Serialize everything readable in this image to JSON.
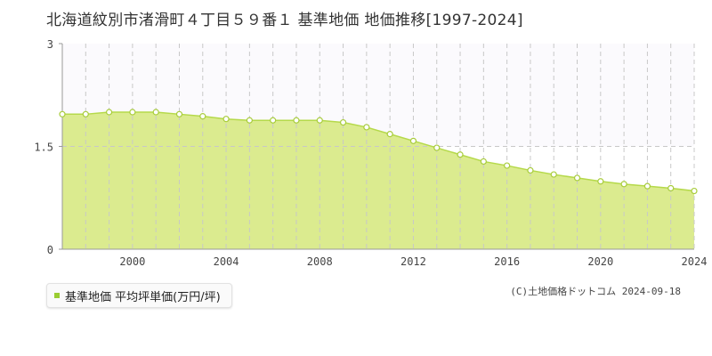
{
  "title": "北海道紋別市渚滑町４丁目５９番１ 基準地価 地価推移[1997-2024]",
  "legend": {
    "label": "基準地価 平均坪単価(万円/坪)"
  },
  "copyright": "(C)土地価格ドットコム 2024-09-18",
  "colors": {
    "fill": "#dbeb8f",
    "line": "#b5d94a",
    "point_stroke": "#a8cc3c",
    "legend_marker": "#9acd32"
  },
  "chart_data": {
    "type": "area",
    "x": [
      1997,
      1998,
      1999,
      2000,
      2001,
      2002,
      2003,
      2004,
      2005,
      2006,
      2007,
      2008,
      2009,
      2010,
      2011,
      2012,
      2013,
      2014,
      2015,
      2016,
      2017,
      2018,
      2019,
      2020,
      2021,
      2022,
      2023,
      2024
    ],
    "series": [
      {
        "name": "基準地価 平均坪単価(万円/坪)",
        "values": [
          1.97,
          1.97,
          2.0,
          2.0,
          2.0,
          1.97,
          1.94,
          1.9,
          1.88,
          1.88,
          1.88,
          1.88,
          1.85,
          1.78,
          1.68,
          1.58,
          1.48,
          1.38,
          1.28,
          1.22,
          1.15,
          1.09,
          1.04,
          0.99,
          0.95,
          0.92,
          0.89,
          0.85
        ]
      }
    ],
    "xticks": [
      2000,
      2004,
      2008,
      2012,
      2016,
      2020,
      2024
    ],
    "yticks": [
      "0",
      "1.5",
      "3"
    ],
    "ylim": [
      0,
      3
    ],
    "xlim": [
      1997,
      2024
    ],
    "grid": true
  }
}
